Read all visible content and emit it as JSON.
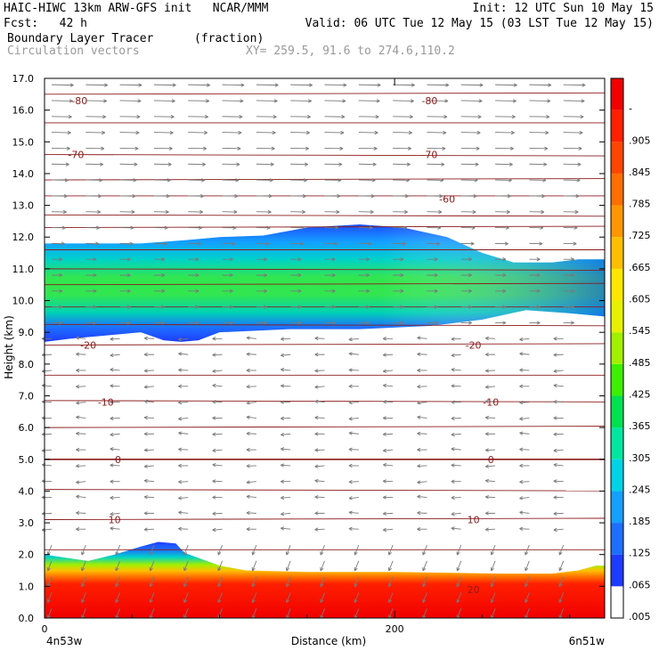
{
  "header": {
    "line1_left": "HAIC-HIWC 13km ARW-GFS init   NCAR/MMM",
    "line1_right": "Init: 12 UTC Sun 10 May 15",
    "line2_left": "Fcst:   42 h",
    "line2_right": "Valid: 06 UTC Tue 12 May 15 (03 LST Tue 12 May 15)",
    "line3_left": "Boundary Layer Tracer",
    "line3_units": "(fraction)",
    "line4_left": "Circulation vectors",
    "line4_right": "XY= 259.5, 91.6 to 274.6,110.2"
  },
  "chart_data": {
    "type": "cross-section",
    "ylabel": "Height (km)",
    "xlabel": "Distance (km)",
    "x_left_label": "4n53w",
    "x_right_label": "6n51w",
    "xlim": [
      0,
      320
    ],
    "ylim": [
      0,
      17
    ],
    "x_ticks": [
      0,
      200
    ],
    "y_ticks": [
      "0.0",
      "1.0",
      "2.0",
      "3.0",
      "4.0",
      "5.0",
      "6.0",
      "7.0",
      "8.0",
      "9.0",
      "10.0",
      "11.0",
      "12.0",
      "13.0",
      "14.0",
      "15.0",
      "16.0",
      "17.0"
    ],
    "colorbar_labels": [
      ".005",
      ".065",
      ".125",
      ".185",
      ".245",
      ".305",
      ".365",
      ".425",
      ".485",
      ".545",
      ".605",
      ".665",
      ".725",
      ".785",
      ".845",
      ".905",
      "-"
    ],
    "colorbar_colors": [
      "#ffffff",
      "#1e3cff",
      "#1e6eff",
      "#14a0ff",
      "#00d2e6",
      "#00e6a0",
      "#00e050",
      "#3cf000",
      "#a0f000",
      "#e6f000",
      "#ffe600",
      "#ffbe00",
      "#ff9600",
      "#ff6e00",
      "#ff4600",
      "#ff2000",
      "#f00000"
    ],
    "temperature_labels": [
      {
        "text": "-80",
        "x": 20,
        "y": 16.3
      },
      {
        "text": "-80",
        "x": 220,
        "y": 16.3
      },
      {
        "text": "-70",
        "x": 18,
        "y": 14.6
      },
      {
        "text": "-70",
        "x": 220,
        "y": 14.6
      },
      {
        "text": "-60",
        "x": 230,
        "y": 13.2
      },
      {
        "text": "-20",
        "x": 25,
        "y": 8.6
      },
      {
        "text": "-20",
        "x": 245,
        "y": 8.6
      },
      {
        "text": "-10",
        "x": 35,
        "y": 6.8
      },
      {
        "text": "-10",
        "x": 255,
        "y": 6.8
      },
      {
        "text": "0",
        "x": 42,
        "y": 5.0
      },
      {
        "text": "0",
        "x": 255,
        "y": 5.0
      },
      {
        "text": "10",
        "x": 40,
        "y": 3.1
      },
      {
        "text": "10",
        "x": 245,
        "y": 3.1
      },
      {
        "text": "20",
        "x": 245,
        "y": 0.9
      }
    ],
    "upper_layer": {
      "base_km": 9.0,
      "top_km": 12.3,
      "core_km": 10.4
    },
    "lower_layer": {
      "top_km": 1.6,
      "peak_km": 2.4,
      "peak_x": 65
    }
  }
}
